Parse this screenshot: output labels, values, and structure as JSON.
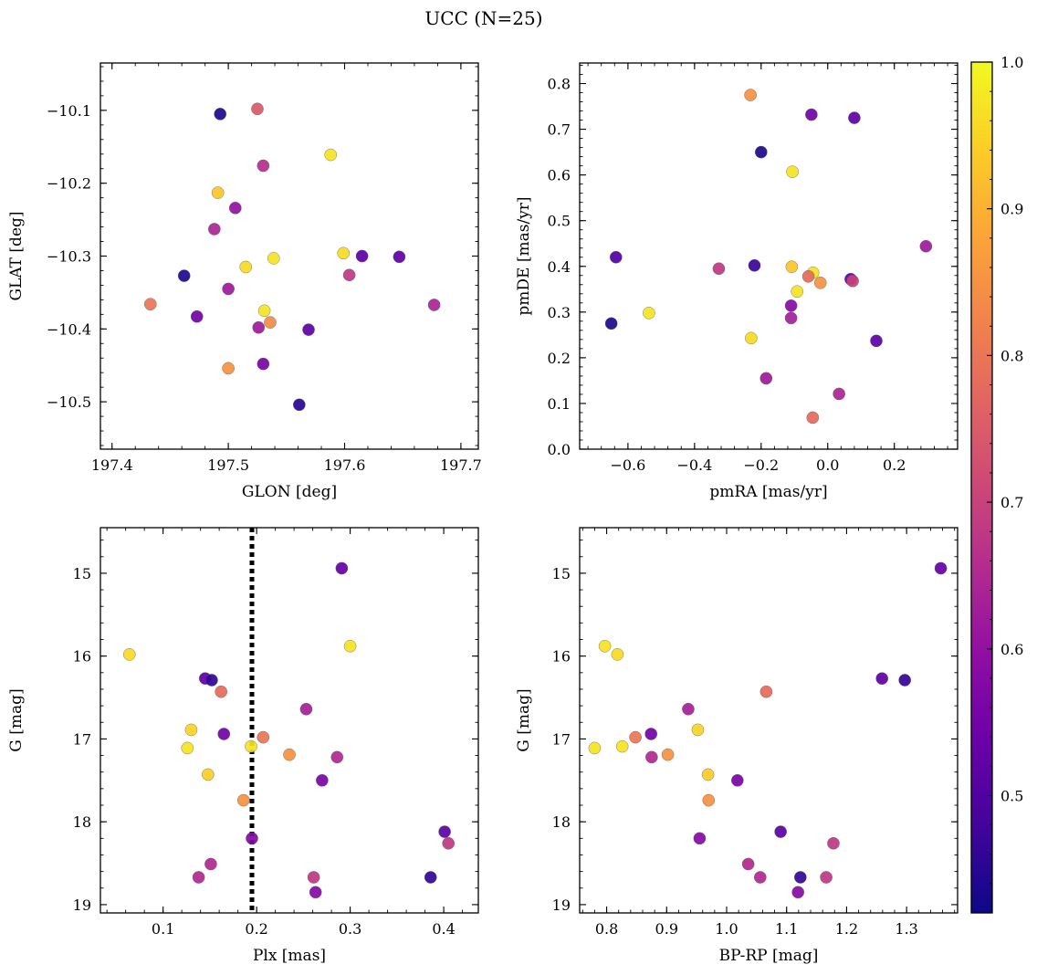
{
  "title": "UCC (N=25)",
  "colorbar": {
    "range": [
      0.42,
      1.0
    ],
    "ticks": [
      0.5,
      0.6,
      0.7,
      0.8,
      0.9,
      1.0
    ],
    "tick_labels": [
      "0.5",
      "0.6",
      "0.7",
      "0.8",
      "0.9",
      "1.0"
    ],
    "colormap": "plasma"
  },
  "chart_data": [
    {
      "type": "scatter",
      "xlabel": "GLON [deg]",
      "ylabel": "GLAT [deg]",
      "xlim": [
        197.39,
        197.715
      ],
      "ylim": [
        -10.565,
        -10.035
      ],
      "y_inverted": false,
      "xticks": [
        197.4,
        197.5,
        197.6,
        197.7
      ],
      "xtick_labels": [
        "197.4",
        "197.5",
        "197.6",
        "197.7"
      ],
      "yticks": [
        -10.1,
        -10.2,
        -10.3,
        -10.4,
        -10.5
      ],
      "ytick_labels": [
        "−10.1",
        "−10.2",
        "−10.3",
        "−10.4",
        "−10.5"
      ],
      "points": [
        {
          "x": 197.525,
          "y": -10.098,
          "c": 0.75
        },
        {
          "x": 197.493,
          "y": -10.105,
          "c": 0.44
        },
        {
          "x": 197.588,
          "y": -10.161,
          "c": 0.97
        },
        {
          "x": 197.53,
          "y": -10.176,
          "c": 0.66
        },
        {
          "x": 197.491,
          "y": -10.213,
          "c": 0.93
        },
        {
          "x": 197.506,
          "y": -10.234,
          "c": 0.6
        },
        {
          "x": 197.488,
          "y": -10.263,
          "c": 0.64
        },
        {
          "x": 197.599,
          "y": -10.296,
          "c": 0.96
        },
        {
          "x": 197.615,
          "y": -10.3,
          "c": 0.52
        },
        {
          "x": 197.647,
          "y": -10.301,
          "c": 0.52
        },
        {
          "x": 197.539,
          "y": -10.303,
          "c": 0.97
        },
        {
          "x": 197.515,
          "y": -10.315,
          "c": 0.96
        },
        {
          "x": 197.604,
          "y": -10.326,
          "c": 0.68
        },
        {
          "x": 197.462,
          "y": -10.327,
          "c": 0.44
        },
        {
          "x": 197.5,
          "y": -10.345,
          "c": 0.62
        },
        {
          "x": 197.433,
          "y": -10.366,
          "c": 0.8
        },
        {
          "x": 197.677,
          "y": -10.367,
          "c": 0.64
        },
        {
          "x": 197.531,
          "y": -10.375,
          "c": 0.97
        },
        {
          "x": 197.473,
          "y": -10.383,
          "c": 0.55
        },
        {
          "x": 197.536,
          "y": -10.391,
          "c": 0.84
        },
        {
          "x": 197.526,
          "y": -10.398,
          "c": 0.62
        },
        {
          "x": 197.569,
          "y": -10.401,
          "c": 0.52
        },
        {
          "x": 197.53,
          "y": -10.448,
          "c": 0.56
        },
        {
          "x": 197.5,
          "y": -10.454,
          "c": 0.85
        },
        {
          "x": 197.561,
          "y": -10.504,
          "c": 0.45
        }
      ]
    },
    {
      "type": "scatter",
      "xlabel": "pmRA [mas/yr]",
      "ylabel": "pmDE [mas/yr]",
      "xlim": [
        -0.745,
        0.39
      ],
      "ylim": [
        0.0,
        0.845
      ],
      "y_inverted": false,
      "xticks": [
        -0.6,
        -0.4,
        -0.2,
        0.0,
        0.2
      ],
      "xtick_labels": [
        "−0.6",
        "−0.4",
        "−0.2",
        "0.0",
        "0.2"
      ],
      "yticks": [
        0.0,
        0.1,
        0.2,
        0.3,
        0.4,
        0.5,
        0.6,
        0.7,
        0.8
      ],
      "ytick_labels": [
        "0.0",
        "0.1",
        "0.2",
        "0.3",
        "0.4",
        "0.5",
        "0.6",
        "0.7",
        "0.8"
      ],
      "points": [
        {
          "x": -0.232,
          "y": 0.775,
          "c": 0.85
        },
        {
          "x": -0.049,
          "y": 0.732,
          "c": 0.55
        },
        {
          "x": 0.08,
          "y": 0.725,
          "c": 0.52
        },
        {
          "x": -0.2,
          "y": 0.65,
          "c": 0.44
        },
        {
          "x": -0.106,
          "y": 0.607,
          "c": 0.97
        },
        {
          "x": 0.295,
          "y": 0.444,
          "c": 0.62
        },
        {
          "x": -0.636,
          "y": 0.42,
          "c": 0.5
        },
        {
          "x": -0.22,
          "y": 0.402,
          "c": 0.47
        },
        {
          "x": -0.108,
          "y": 0.399,
          "c": 0.93
        },
        {
          "x": -0.327,
          "y": 0.395,
          "c": 0.68
        },
        {
          "x": -0.044,
          "y": 0.386,
          "c": 0.97
        },
        {
          "x": -0.058,
          "y": 0.378,
          "c": 0.78
        },
        {
          "x": 0.069,
          "y": 0.372,
          "c": 0.52
        },
        {
          "x": 0.075,
          "y": 0.368,
          "c": 0.7
        },
        {
          "x": -0.022,
          "y": 0.364,
          "c": 0.85
        },
        {
          "x": -0.092,
          "y": 0.345,
          "c": 0.97
        },
        {
          "x": -0.11,
          "y": 0.314,
          "c": 0.58
        },
        {
          "x": -0.537,
          "y": 0.298,
          "c": 0.97
        },
        {
          "x": -0.11,
          "y": 0.287,
          "c": 0.63
        },
        {
          "x": -0.65,
          "y": 0.275,
          "c": 0.44
        },
        {
          "x": -0.23,
          "y": 0.243,
          "c": 0.96
        },
        {
          "x": 0.146,
          "y": 0.237,
          "c": 0.52
        },
        {
          "x": -0.185,
          "y": 0.155,
          "c": 0.62
        },
        {
          "x": 0.034,
          "y": 0.121,
          "c": 0.64
        },
        {
          "x": -0.045,
          "y": 0.069,
          "c": 0.78
        }
      ]
    },
    {
      "type": "scatter",
      "xlabel": "Plx [mas]",
      "ylabel": "G [mag]",
      "xlim": [
        0.033,
        0.437
      ],
      "ylim": [
        19.1,
        14.45
      ],
      "y_inverted": true,
      "xticks": [
        0.1,
        0.2,
        0.3,
        0.4
      ],
      "xtick_labels": [
        "0.1",
        "0.2",
        "0.3",
        "0.4"
      ],
      "yticks": [
        15,
        16,
        17,
        18,
        19
      ],
      "ytick_labels": [
        "15",
        "16",
        "17",
        "18",
        "19"
      ],
      "vline": 0.195,
      "points": [
        {
          "x": 0.291,
          "y": 14.94,
          "c": 0.53
        },
        {
          "x": 0.064,
          "y": 15.98,
          "c": 0.96
        },
        {
          "x": 0.3,
          "y": 15.88,
          "c": 0.97
        },
        {
          "x": 0.145,
          "y": 16.27,
          "c": 0.52
        },
        {
          "x": 0.152,
          "y": 16.29,
          "c": 0.46
        },
        {
          "x": 0.162,
          "y": 16.43,
          "c": 0.78
        },
        {
          "x": 0.253,
          "y": 16.64,
          "c": 0.63
        },
        {
          "x": 0.13,
          "y": 16.89,
          "c": 0.95
        },
        {
          "x": 0.165,
          "y": 16.94,
          "c": 0.55
        },
        {
          "x": 0.207,
          "y": 16.98,
          "c": 0.8
        },
        {
          "x": 0.126,
          "y": 17.11,
          "c": 0.97
        },
        {
          "x": 0.194,
          "y": 17.09,
          "c": 0.97
        },
        {
          "x": 0.235,
          "y": 17.19,
          "c": 0.85
        },
        {
          "x": 0.286,
          "y": 17.22,
          "c": 0.65
        },
        {
          "x": 0.148,
          "y": 17.43,
          "c": 0.94
        },
        {
          "x": 0.27,
          "y": 17.5,
          "c": 0.56
        },
        {
          "x": 0.186,
          "y": 17.74,
          "c": 0.85
        },
        {
          "x": 0.195,
          "y": 18.2,
          "c": 0.58
        },
        {
          "x": 0.401,
          "y": 18.12,
          "c": 0.52
        },
        {
          "x": 0.405,
          "y": 18.26,
          "c": 0.68
        },
        {
          "x": 0.151,
          "y": 18.51,
          "c": 0.65
        },
        {
          "x": 0.138,
          "y": 18.67,
          "c": 0.65
        },
        {
          "x": 0.261,
          "y": 18.67,
          "c": 0.68
        },
        {
          "x": 0.386,
          "y": 18.67,
          "c": 0.46
        },
        {
          "x": 0.263,
          "y": 18.85,
          "c": 0.58
        }
      ]
    },
    {
      "type": "scatter",
      "xlabel": "BP-RP [mag]",
      "ylabel": "G [mag]",
      "xlim": [
        0.755,
        1.385
      ],
      "ylim": [
        19.1,
        14.45
      ],
      "y_inverted": true,
      "xticks": [
        0.8,
        0.9,
        1.0,
        1.1,
        1.2,
        1.3
      ],
      "xtick_labels": [
        "0.8",
        "0.9",
        "1.0",
        "1.1",
        "1.2",
        "1.3"
      ],
      "yticks": [
        15,
        16,
        17,
        18,
        19
      ],
      "ytick_labels": [
        "15",
        "16",
        "17",
        "18",
        "19"
      ],
      "points": [
        {
          "x": 1.357,
          "y": 14.94,
          "c": 0.53
        },
        {
          "x": 0.797,
          "y": 15.88,
          "c": 0.97
        },
        {
          "x": 0.818,
          "y": 15.98,
          "c": 0.96
        },
        {
          "x": 1.259,
          "y": 16.27,
          "c": 0.52
        },
        {
          "x": 1.297,
          "y": 16.29,
          "c": 0.46
        },
        {
          "x": 1.066,
          "y": 16.43,
          "c": 0.78
        },
        {
          "x": 0.936,
          "y": 16.64,
          "c": 0.63
        },
        {
          "x": 0.952,
          "y": 16.89,
          "c": 0.95
        },
        {
          "x": 0.874,
          "y": 16.94,
          "c": 0.55
        },
        {
          "x": 0.848,
          "y": 16.98,
          "c": 0.8
        },
        {
          "x": 0.78,
          "y": 17.11,
          "c": 0.97
        },
        {
          "x": 0.826,
          "y": 17.09,
          "c": 0.97
        },
        {
          "x": 0.902,
          "y": 17.19,
          "c": 0.85
        },
        {
          "x": 0.875,
          "y": 17.22,
          "c": 0.65
        },
        {
          "x": 0.969,
          "y": 17.43,
          "c": 0.94
        },
        {
          "x": 1.018,
          "y": 17.5,
          "c": 0.56
        },
        {
          "x": 0.97,
          "y": 17.74,
          "c": 0.85
        },
        {
          "x": 0.955,
          "y": 18.2,
          "c": 0.58
        },
        {
          "x": 1.09,
          "y": 18.12,
          "c": 0.52
        },
        {
          "x": 1.178,
          "y": 18.26,
          "c": 0.68
        },
        {
          "x": 1.036,
          "y": 18.51,
          "c": 0.65
        },
        {
          "x": 1.056,
          "y": 18.67,
          "c": 0.65
        },
        {
          "x": 1.166,
          "y": 18.67,
          "c": 0.68
        },
        {
          "x": 1.123,
          "y": 18.67,
          "c": 0.46
        },
        {
          "x": 1.119,
          "y": 18.85,
          "c": 0.58
        }
      ]
    }
  ]
}
